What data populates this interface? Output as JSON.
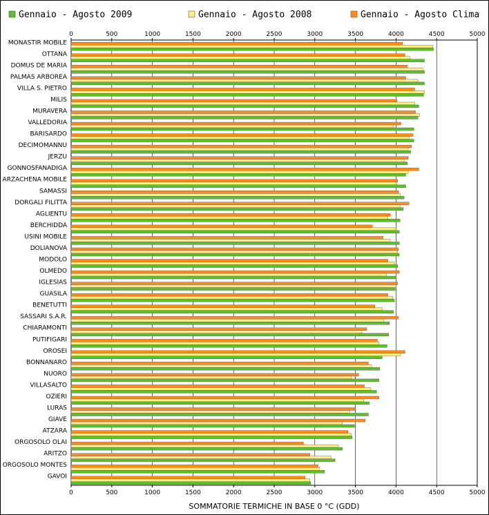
{
  "chart_data": {
    "type": "bar",
    "orientation": "horizontal",
    "xlabel": "SOMMATORIE TERMICHE IN BASE 0 °C (GDD)",
    "xlim": [
      0,
      5000
    ],
    "xticks": [
      "0",
      "500",
      "1000",
      "1500",
      "2000",
      "2500",
      "3000",
      "3500",
      "4000",
      "4500",
      "5000"
    ],
    "grid": "vertical",
    "legend_position": "top",
    "categories": [
      "MONASTIR MOBILE",
      "OTTANA",
      "DOMUS DE MARIA",
      "PALMAS ARBOREA",
      "VILLA S. PIETRO",
      "MILIS",
      "MURAVERA",
      "VALLEDORIA",
      "BARISARDO",
      "DECIMOMANNU",
      "JERZU",
      "GONNOSFANADIGA",
      "ARZACHENA MOBILE",
      "SAMASSI",
      "DORGALI FILITTA",
      "AGLIENTU",
      "BERCHIDDA",
      "USINI MOBILE",
      "DOLIANOVA",
      "MODOLO",
      "OLMEDO",
      "IGLESIAS",
      "GUASILA",
      "BENETUTTI",
      "SASSARI S.A.R.",
      "CHIARAMONTI",
      "PUTIFIGARI",
      "OROSEI",
      "BONNANARO",
      "NUORO",
      "VILLASALTO",
      "OZIERI",
      "LURAS",
      "GIAVE",
      "ATZARA",
      "ORGOSOLO OLAI",
      "ARITZO",
      "ORGOSOLO MONTES",
      "GAVOI"
    ],
    "series": [
      {
        "name": "Gennaio - Agosto Clima",
        "color": "#ff8c1a",
        "values": [
          4080,
          4110,
          4140,
          4120,
          4230,
          4010,
          4240,
          4060,
          4210,
          4190,
          4150,
          4280,
          4020,
          4030,
          4160,
          3930,
          3710,
          3840,
          4030,
          3900,
          4040,
          4020,
          3900,
          3740,
          4030,
          3640,
          3770,
          4110,
          3660,
          3540,
          3610,
          3790,
          3500,
          3620,
          3410,
          2860,
          2940,
          3040,
          2880
        ]
      },
      {
        "name": "Gennaio - Agosto 2008",
        "color": "#ffee88",
        "values": [
          4450,
          4170,
          4330,
          4270,
          4350,
          4230,
          4290,
          3970,
          4160,
          4150,
          4100,
          4150,
          4000,
          4050,
          4050,
          3900,
          4000,
          3930,
          4020,
          3980,
          3880,
          4000,
          3960,
          3830,
          3850,
          3580,
          3790,
          4050,
          3700,
          3450,
          3690,
          3600,
          3430,
          3340,
          3450,
          3290,
          3200,
          3060,
          2940
        ]
      },
      {
        "name": "Gennaio - Agosto 2009",
        "color": "#5cc02c",
        "values": [
          4460,
          4350,
          4350,
          4350,
          4340,
          4280,
          4270,
          4220,
          4220,
          4180,
          4140,
          4120,
          4120,
          4100,
          4090,
          4050,
          4040,
          4040,
          4040,
          4020,
          4000,
          3990,
          3980,
          3970,
          3920,
          3910,
          3890,
          3830,
          3800,
          3790,
          3760,
          3670,
          3660,
          3490,
          3460,
          3340,
          3250,
          3120,
          2950
        ]
      }
    ]
  },
  "legend": [
    {
      "label": "Gennaio - Agosto 2009",
      "color": "#5cc02c"
    },
    {
      "label": "Gennaio - Agosto 2008",
      "color": "#ffee88"
    },
    {
      "label": "Gennaio - Agosto Clima",
      "color": "#ff8c1a"
    }
  ],
  "colors": {
    "grid": "#000000",
    "bar_border": "#555555"
  }
}
